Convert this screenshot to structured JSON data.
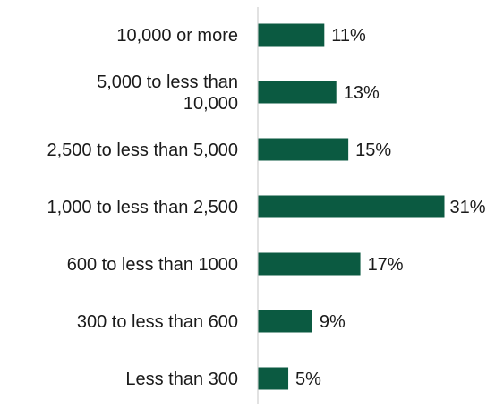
{
  "chart_data": {
    "type": "bar",
    "orientation": "horizontal",
    "categories": [
      "10,000 or more",
      "5,000 to less than 10,000",
      "2,500 to less than 5,000",
      "1,000 to less than 2,500",
      "600 to less than 1000",
      "300 to less than 600",
      "Less than 300"
    ],
    "category_lines": [
      [
        "10,000 or more"
      ],
      [
        "5,000 to less than",
        "10,000"
      ],
      [
        "2,500 to less than 5,000"
      ],
      [
        "1,000 to less than 2,500"
      ],
      [
        "600 to less than 1000"
      ],
      [
        "300 to less than 600"
      ],
      [
        "Less than 300"
      ]
    ],
    "values": [
      11,
      13,
      15,
      31,
      17,
      9,
      5
    ],
    "value_labels": [
      "11%",
      "13%",
      "15%",
      "31%",
      "17%",
      "9%",
      "5%"
    ],
    "unit": "%",
    "title": "",
    "xlabel": "",
    "ylabel": "",
    "xlim": [
      0,
      31
    ],
    "grid": false,
    "legend": "none",
    "colors": {
      "bar": "#0b5a41",
      "axis": "#d9d9d9",
      "text": "#1a1a1a"
    }
  }
}
